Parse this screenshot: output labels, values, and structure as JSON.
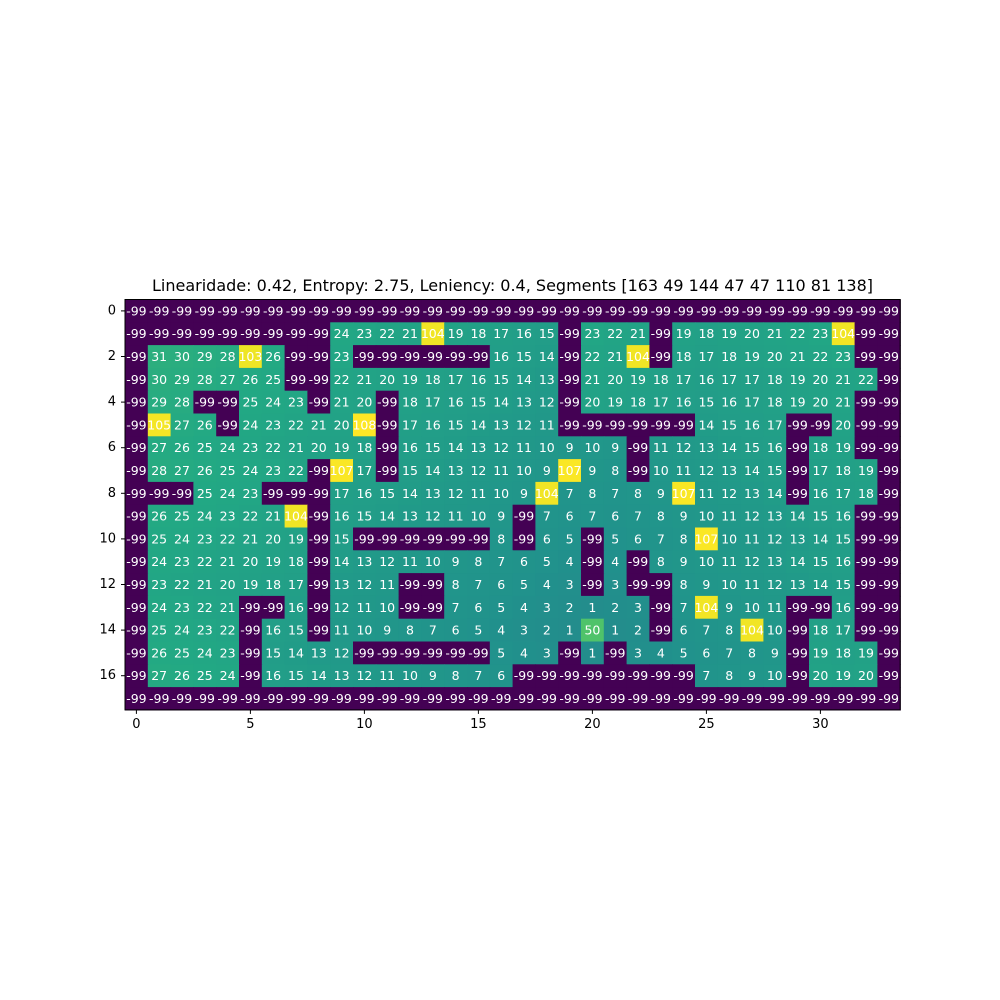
{
  "chart_data": {
    "type": "heatmap",
    "title": "Linearidade: 0.42, Entropy: 2.75, Leniency: 0.4, Segments [163  49 144  47  47 110  81 138]",
    "colormap": "viridis",
    "vmin": -99,
    "vmax": 108,
    "xticks": [
      0,
      5,
      10,
      15,
      20,
      25,
      30
    ],
    "yticks": [
      0,
      2,
      4,
      6,
      8,
      10,
      12,
      14,
      16
    ],
    "rows": 18,
    "cols": 34,
    "values": [
      [
        -99,
        -99,
        -99,
        -99,
        -99,
        -99,
        -99,
        -99,
        -99,
        -99,
        -99,
        -99,
        -99,
        -99,
        -99,
        -99,
        -99,
        -99,
        -99,
        -99,
        -99,
        -99,
        -99,
        -99,
        -99,
        -99,
        -99,
        -99,
        -99,
        -99,
        -99,
        -99,
        -99,
        -99
      ],
      [
        -99,
        -99,
        -99,
        -99,
        -99,
        -99,
        -99,
        -99,
        -99,
        24,
        23,
        22,
        21,
        104,
        19,
        18,
        17,
        16,
        15,
        -99,
        23,
        22,
        21,
        -99,
        19,
        18,
        19,
        20,
        21,
        22,
        23,
        104,
        -99,
        -99
      ],
      [
        -99,
        31,
        30,
        29,
        28,
        103,
        26,
        -99,
        -99,
        23,
        -99,
        -99,
        -99,
        -99,
        -99,
        -99,
        16,
        15,
        14,
        -99,
        22,
        21,
        104,
        -99,
        18,
        17,
        18,
        19,
        20,
        21,
        22,
        23,
        -99,
        -99
      ],
      [
        -99,
        30,
        29,
        28,
        27,
        26,
        25,
        -99,
        -99,
        22,
        21,
        20,
        19,
        18,
        17,
        16,
        15,
        14,
        13,
        -99,
        21,
        20,
        19,
        18,
        17,
        16,
        17,
        17,
        18,
        19,
        20,
        21,
        22,
        -99
      ],
      [
        -99,
        29,
        28,
        -99,
        -99,
        25,
        24,
        23,
        -99,
        21,
        20,
        -99,
        18,
        17,
        16,
        15,
        14,
        13,
        12,
        -99,
        20,
        19,
        18,
        17,
        16,
        15,
        16,
        17,
        18,
        19,
        20,
        21,
        -99,
        -99
      ],
      [
        -99,
        105,
        27,
        26,
        -99,
        24,
        23,
        22,
        21,
        20,
        108,
        -99,
        17,
        16,
        15,
        14,
        13,
        12,
        11,
        -99,
        -99,
        -99,
        -99,
        -99,
        -99,
        14,
        15,
        16,
        17,
        -99,
        -99,
        20,
        -99,
        -99
      ],
      [
        -99,
        27,
        26,
        25,
        24,
        23,
        22,
        21,
        20,
        19,
        18,
        -99,
        16,
        15,
        14,
        13,
        12,
        11,
        10,
        9,
        10,
        9,
        -99,
        11,
        12,
        13,
        14,
        15,
        16,
        -99,
        18,
        19,
        -99,
        -99
      ],
      [
        -99,
        28,
        27,
        26,
        25,
        24,
        23,
        22,
        -99,
        107,
        17,
        -99,
        15,
        14,
        13,
        12,
        11,
        10,
        9,
        107,
        9,
        8,
        -99,
        10,
        11,
        12,
        13,
        14,
        15,
        -99,
        17,
        18,
        19,
        -99
      ],
      [
        -99,
        -99,
        -99,
        25,
        24,
        23,
        -99,
        -99,
        -99,
        17,
        16,
        15,
        14,
        13,
        12,
        11,
        10,
        9,
        104,
        7,
        8,
        7,
        8,
        9,
        107,
        11,
        12,
        13,
        14,
        -99,
        16,
        17,
        18,
        -99
      ],
      [
        -99,
        26,
        25,
        24,
        23,
        22,
        21,
        104,
        -99,
        16,
        15,
        14,
        13,
        12,
        11,
        10,
        9,
        -99,
        7,
        6,
        7,
        6,
        7,
        8,
        9,
        10,
        11,
        12,
        13,
        14,
        15,
        16,
        -99,
        -99
      ],
      [
        -99,
        25,
        24,
        23,
        22,
        21,
        20,
        19,
        -99,
        15,
        -99,
        -99,
        -99,
        -99,
        -99,
        -99,
        8,
        -99,
        6,
        5,
        -99,
        5,
        6,
        7,
        8,
        107,
        10,
        11,
        12,
        13,
        14,
        15,
        -99,
        -99
      ],
      [
        -99,
        24,
        23,
        22,
        21,
        20,
        19,
        18,
        -99,
        14,
        13,
        12,
        11,
        10,
        9,
        8,
        7,
        6,
        5,
        4,
        -99,
        4,
        -99,
        8,
        9,
        10,
        11,
        12,
        13,
        14,
        15,
        16,
        -99,
        -99
      ],
      [
        -99,
        23,
        22,
        21,
        20,
        19,
        18,
        17,
        -99,
        13,
        12,
        11,
        -99,
        -99,
        8,
        7,
        6,
        5,
        4,
        3,
        -99,
        3,
        -99,
        -99,
        8,
        9,
        10,
        11,
        12,
        13,
        14,
        15,
        -99,
        -99
      ],
      [
        -99,
        24,
        23,
        22,
        21,
        -99,
        -99,
        16,
        -99,
        12,
        11,
        10,
        -99,
        -99,
        7,
        6,
        5,
        4,
        3,
        2,
        1,
        2,
        3,
        -99,
        7,
        104,
        9,
        10,
        11,
        -99,
        -99,
        16,
        -99,
        -99
      ],
      [
        -99,
        25,
        24,
        23,
        22,
        -99,
        16,
        15,
        -99,
        11,
        10,
        9,
        8,
        7,
        6,
        5,
        4,
        3,
        2,
        1,
        50,
        1,
        2,
        -99,
        6,
        7,
        8,
        104,
        10,
        -99,
        18,
        17,
        -99,
        -99
      ],
      [
        -99,
        26,
        25,
        24,
        23,
        -99,
        15,
        14,
        13,
        12,
        -99,
        -99,
        -99,
        -99,
        -99,
        -99,
        5,
        4,
        3,
        -99,
        1,
        -99,
        3,
        4,
        5,
        6,
        7,
        8,
        9,
        -99,
        19,
        18,
        19,
        -99
      ],
      [
        -99,
        27,
        26,
        25,
        24,
        -99,
        16,
        15,
        14,
        13,
        12,
        11,
        10,
        9,
        8,
        7,
        6,
        -99,
        -99,
        -99,
        -99,
        -99,
        -99,
        -99,
        -99,
        7,
        8,
        9,
        10,
        -99,
        20,
        19,
        20,
        -99
      ],
      [
        -99,
        -99,
        -99,
        -99,
        -99,
        -99,
        -99,
        -99,
        -99,
        -99,
        -99,
        -99,
        -99,
        -99,
        -99,
        -99,
        -99,
        -99,
        -99,
        -99,
        -99,
        -99,
        -99,
        -99,
        -99,
        -99,
        -99,
        -99,
        -99,
        -99,
        -99,
        -99,
        -99,
        -99
      ]
    ]
  }
}
